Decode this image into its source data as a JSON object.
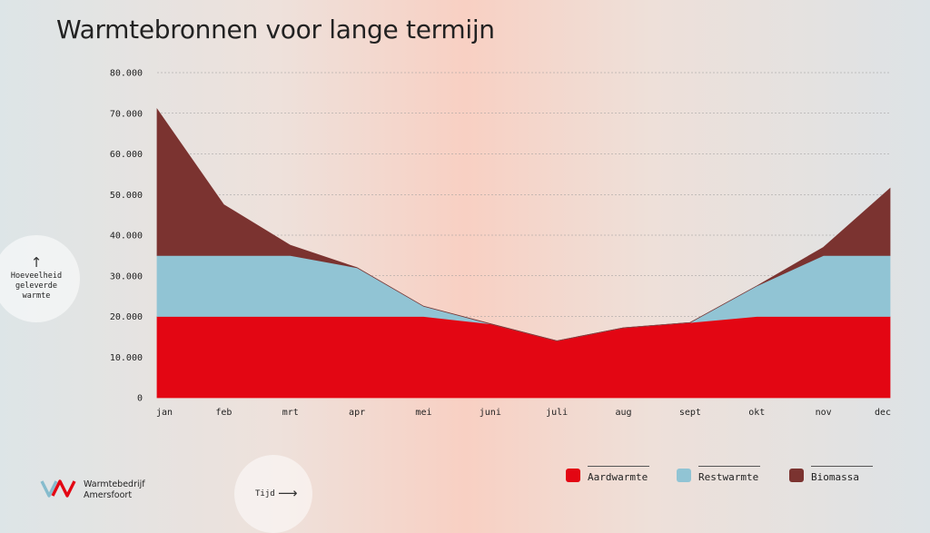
{
  "page": {
    "title": "Warmtebronnen voor lange termijn"
  },
  "axes": {
    "y_label": "Hoeveelheid geleverde warmte",
    "x_label": "Tijd"
  },
  "brand": {
    "name_line1": "Warmtebedrijf",
    "name_line2": "Amersfoort"
  },
  "chart_data": {
    "type": "area",
    "stacked": true,
    "title": "Warmtebronnen voor lange termijn",
    "xlabel": "Tijd",
    "ylabel": "Hoeveelheid geleverde warmte",
    "categories": [
      "jan",
      "feb",
      "mrt",
      "apr",
      "mei",
      "juni",
      "juli",
      "aug",
      "sept",
      "okt",
      "nov",
      "dec"
    ],
    "ylim": [
      0,
      80000
    ],
    "y_ticks": [
      "0",
      "10.000",
      "20.000",
      "30.000",
      "40.000",
      "50.000",
      "60.000",
      "70.000",
      "80.000"
    ],
    "grid": true,
    "legend_position": "bottom-right",
    "series": [
      {
        "name": "Aardwarmte",
        "color": "#e30613",
        "values": [
          20000,
          20000,
          20000,
          20000,
          20000,
          18200,
          14000,
          17200,
          18500,
          20000,
          20000,
          20000
        ]
      },
      {
        "name": "Restwarmte",
        "color": "#91c4d4",
        "values": [
          15000,
          15000,
          15000,
          12000,
          2500,
          0,
          0,
          0,
          0,
          7500,
          15000,
          15000
        ]
      },
      {
        "name": "Biomassa",
        "color": "#7b3330",
        "values": [
          36000,
          12500,
          2500,
          0,
          0,
          0,
          0,
          0,
          0,
          0,
          2000,
          16500
        ]
      }
    ]
  }
}
